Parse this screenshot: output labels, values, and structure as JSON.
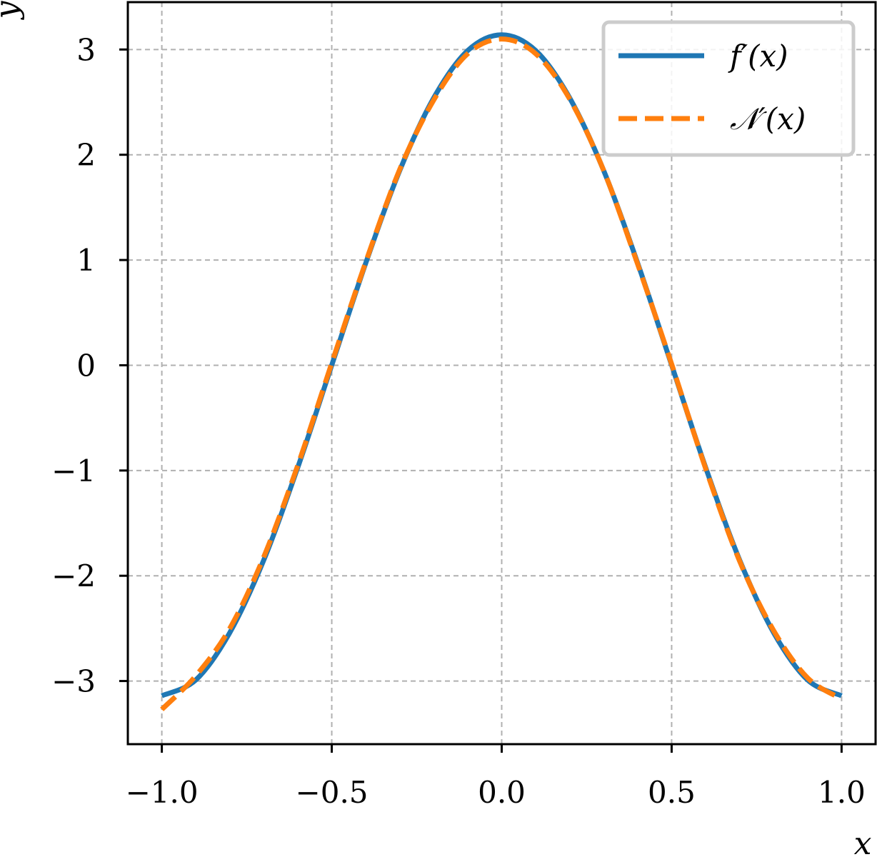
{
  "chart_data": {
    "type": "line",
    "xlabel": "x",
    "ylabel": "y",
    "xlim": [
      -1.1,
      1.1
    ],
    "ylim": [
      -3.6,
      3.45
    ],
    "grid": true,
    "legend_position": "top-right",
    "xticks": [
      -1.0,
      -0.5,
      0.0,
      0.5,
      1.0
    ],
    "xtick_labels": [
      "−1.0",
      "−0.5",
      "0.0",
      "0.5",
      "1.0"
    ],
    "yticks": [
      -3,
      -2,
      -1,
      0,
      1,
      2,
      3
    ],
    "ytick_labels": [
      "−3",
      "−2",
      "−1",
      "0",
      "1",
      "2",
      "3"
    ],
    "x": [
      -1.0,
      -0.9,
      -0.8,
      -0.7,
      -0.6,
      -0.5,
      -0.4,
      -0.3,
      -0.2,
      -0.1,
      0.0,
      0.1,
      0.2,
      0.3,
      0.4,
      0.5,
      0.6,
      0.7,
      0.8,
      0.9,
      1.0
    ],
    "series": [
      {
        "name": "f′(x)",
        "color": "#1f77b4",
        "style": "solid",
        "values": [
          -3.14,
          -2.99,
          -2.54,
          -1.85,
          -0.97,
          0.0,
          0.97,
          1.85,
          2.54,
          2.99,
          3.14,
          2.99,
          2.54,
          1.85,
          0.97,
          0.0,
          -0.97,
          -1.85,
          -2.54,
          -2.99,
          -3.14
        ]
      },
      {
        "name": "𝒩′(x)",
        "color": "#ff7f0e",
        "style": "dashed",
        "values": [
          -3.27,
          -2.95,
          -2.5,
          -1.82,
          -0.95,
          0.02,
          0.98,
          1.86,
          2.52,
          2.96,
          3.1,
          2.96,
          2.53,
          1.85,
          0.96,
          0.01,
          -0.98,
          -1.86,
          -2.52,
          -2.97,
          -3.17
        ]
      }
    ]
  }
}
